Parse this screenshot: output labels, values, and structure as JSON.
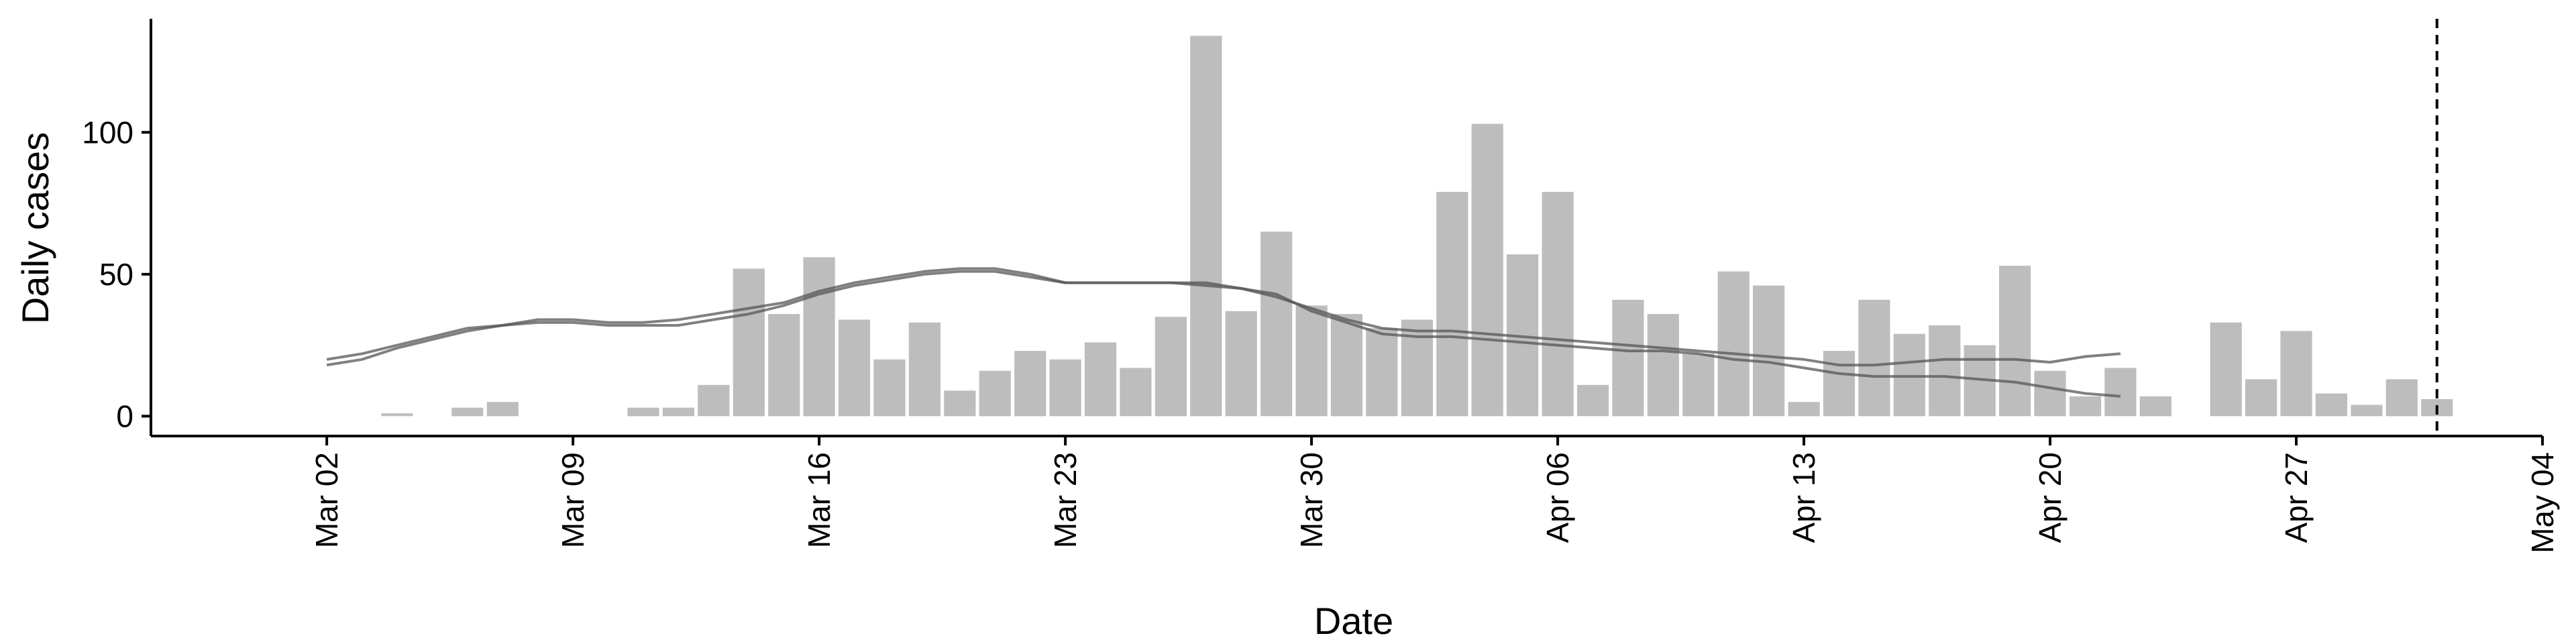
{
  "chart_data": {
    "type": "bar",
    "xlabel": "Date",
    "ylabel": "Daily cases",
    "x_range": [
      "2020-02-26",
      "2020-05-04"
    ],
    "ylim": [
      -7,
      140
    ],
    "y_ticks": [
      0,
      50,
      100
    ],
    "x_ticks": [
      {
        "date": "2020-03-02",
        "label": "Mar 02"
      },
      {
        "date": "2020-03-09",
        "label": "Mar 09"
      },
      {
        "date": "2020-03-16",
        "label": "Mar 16"
      },
      {
        "date": "2020-03-23",
        "label": "Mar 23"
      },
      {
        "date": "2020-03-30",
        "label": "Mar 30"
      },
      {
        "date": "2020-04-06",
        "label": "Apr 06"
      },
      {
        "date": "2020-04-13",
        "label": "Apr 13"
      },
      {
        "date": "2020-04-20",
        "label": "Apr 20"
      },
      {
        "date": "2020-04-27",
        "label": "Apr 27"
      },
      {
        "date": "2020-05-04",
        "label": "May 04"
      }
    ],
    "grid": false,
    "bars": {
      "color": "#bdbdbd",
      "dates": [
        "2020-03-02",
        "2020-03-03",
        "2020-03-04",
        "2020-03-05",
        "2020-03-06",
        "2020-03-07",
        "2020-03-08",
        "2020-03-09",
        "2020-03-10",
        "2020-03-11",
        "2020-03-12",
        "2020-03-13",
        "2020-03-14",
        "2020-03-15",
        "2020-03-16",
        "2020-03-17",
        "2020-03-18",
        "2020-03-19",
        "2020-03-20",
        "2020-03-21",
        "2020-03-22",
        "2020-03-23",
        "2020-03-24",
        "2020-03-25",
        "2020-03-26",
        "2020-03-27",
        "2020-03-28",
        "2020-03-29",
        "2020-03-30",
        "2020-03-31",
        "2020-04-01",
        "2020-04-02",
        "2020-04-03",
        "2020-04-04",
        "2020-04-05",
        "2020-04-06",
        "2020-04-07",
        "2020-04-08",
        "2020-04-09",
        "2020-04-10",
        "2020-04-11",
        "2020-04-12",
        "2020-04-13",
        "2020-04-14",
        "2020-04-15",
        "2020-04-16",
        "2020-04-17",
        "2020-04-18",
        "2020-04-19",
        "2020-04-20",
        "2020-04-21",
        "2020-04-22",
        "2020-04-23",
        "2020-04-24",
        "2020-04-25",
        "2020-04-26",
        "2020-04-27",
        "2020-04-28",
        "2020-04-29",
        "2020-04-30",
        "2020-05-01"
      ],
      "values": [
        0,
        0,
        1,
        0,
        3,
        5,
        0,
        0,
        0,
        3,
        3,
        11,
        52,
        36,
        56,
        34,
        20,
        33,
        9,
        16,
        23,
        20,
        26,
        17,
        35,
        134,
        37,
        65,
        39,
        36,
        31,
        34,
        79,
        103,
        57,
        79,
        11,
        41,
        36,
        22,
        51,
        46,
        5,
        23,
        41,
        29,
        32,
        25,
        53,
        16,
        7,
        17,
        7,
        0,
        33,
        13,
        30,
        8,
        4,
        13,
        6
      ]
    },
    "series": [
      {
        "color": "#555555",
        "dates": [
          "2020-03-02",
          "2020-03-03",
          "2020-03-04",
          "2020-03-05",
          "2020-03-06",
          "2020-03-07",
          "2020-03-08",
          "2020-03-09",
          "2020-03-10",
          "2020-03-11",
          "2020-03-12",
          "2020-03-13",
          "2020-03-14",
          "2020-03-15",
          "2020-03-16",
          "2020-03-17",
          "2020-03-18",
          "2020-03-19",
          "2020-03-20",
          "2020-03-21",
          "2020-03-22",
          "2020-03-23",
          "2020-03-24",
          "2020-03-25",
          "2020-03-26",
          "2020-03-27",
          "2020-03-28",
          "2020-03-29",
          "2020-03-30",
          "2020-03-31",
          "2020-04-01",
          "2020-04-02",
          "2020-04-03",
          "2020-04-04",
          "2020-04-05",
          "2020-04-06",
          "2020-04-07",
          "2020-04-08",
          "2020-04-09",
          "2020-04-10",
          "2020-04-11",
          "2020-04-12",
          "2020-04-13",
          "2020-04-14",
          "2020-04-15",
          "2020-04-16",
          "2020-04-17",
          "2020-04-18",
          "2020-04-19",
          "2020-04-20",
          "2020-04-21",
          "2020-04-22"
        ],
        "values": [
          18,
          20,
          24,
          27,
          30,
          32,
          33,
          33,
          32,
          32,
          32,
          34,
          36,
          39,
          43,
          46,
          48,
          50,
          51,
          51,
          49,
          47,
          47,
          47,
          47,
          46,
          45,
          42,
          38,
          34,
          31,
          30,
          30,
          29,
          28,
          27,
          26,
          25,
          24,
          23,
          22,
          21,
          20,
          18,
          18,
          19,
          20,
          20,
          20,
          19,
          21,
          22
        ]
      },
      {
        "color": "#555555",
        "dates": [
          "2020-03-02",
          "2020-03-03",
          "2020-03-04",
          "2020-03-05",
          "2020-03-06",
          "2020-03-07",
          "2020-03-08",
          "2020-03-09",
          "2020-03-10",
          "2020-03-11",
          "2020-03-12",
          "2020-03-13",
          "2020-03-14",
          "2020-03-15",
          "2020-03-16",
          "2020-03-17",
          "2020-03-18",
          "2020-03-19",
          "2020-03-20",
          "2020-03-21",
          "2020-03-22",
          "2020-03-23",
          "2020-03-24",
          "2020-03-25",
          "2020-03-26",
          "2020-03-27",
          "2020-03-28",
          "2020-03-29",
          "2020-03-30",
          "2020-03-31",
          "2020-04-01",
          "2020-04-02",
          "2020-04-03",
          "2020-04-04",
          "2020-04-05",
          "2020-04-06",
          "2020-04-07",
          "2020-04-08",
          "2020-04-09",
          "2020-04-10",
          "2020-04-11",
          "2020-04-12",
          "2020-04-13",
          "2020-04-14",
          "2020-04-15",
          "2020-04-16",
          "2020-04-17",
          "2020-04-18",
          "2020-04-19",
          "2020-04-20",
          "2020-04-21",
          "2020-04-22"
        ],
        "values": [
          20,
          22,
          25,
          28,
          31,
          32,
          34,
          34,
          33,
          33,
          34,
          36,
          38,
          40,
          44,
          47,
          49,
          51,
          52,
          52,
          50,
          47,
          47,
          47,
          47,
          47,
          45,
          43,
          37,
          33,
          29,
          28,
          28,
          27,
          26,
          25,
          24,
          23,
          23,
          22,
          20,
          19,
          17,
          15,
          14,
          14,
          14,
          13,
          12,
          10,
          8,
          7
        ]
      }
    ],
    "reference_line": {
      "date": "2020-05-01",
      "style": "dashed"
    }
  }
}
